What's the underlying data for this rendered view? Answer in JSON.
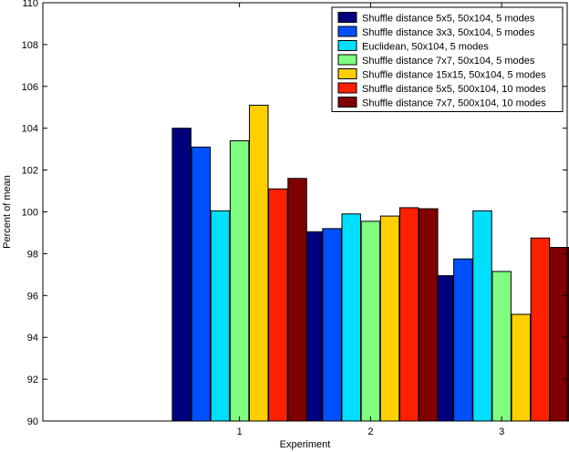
{
  "chart_data": {
    "type": "bar",
    "title": "",
    "xlabel": "Experiment",
    "ylabel": "Percent of mean",
    "categories": [
      "1",
      "2",
      "3"
    ],
    "ylim": [
      90,
      110
    ],
    "yticks": [
      90,
      92,
      94,
      96,
      98,
      100,
      102,
      104,
      106,
      108,
      110
    ],
    "grid": false,
    "legend_position": "top-right",
    "series": [
      {
        "name": "Shuffle distance 5x5, 50x104, 5 modes",
        "color": "#00007f",
        "values": [
          104.0,
          99.05,
          96.95
        ]
      },
      {
        "name": "Shuffle distance 3x3, 50x104, 5 modes",
        "color": "#0050ff",
        "values": [
          103.1,
          99.2,
          97.75
        ]
      },
      {
        "name": "Euclidean, 50x104, 5 modes",
        "color": "#00dfff",
        "values": [
          100.05,
          99.9,
          100.05
        ]
      },
      {
        "name": "Shuffle distance 7x7, 50x104, 5 modes",
        "color": "#80ff80",
        "values": [
          103.4,
          99.55,
          97.15
        ]
      },
      {
        "name": "Shuffle distance 15x15, 50x104, 5 modes",
        "color": "#ffcf00",
        "values": [
          105.1,
          99.8,
          95.1
        ]
      },
      {
        "name": "Shuffle distance 5x5, 500x104, 10 modes",
        "color": "#ff2000",
        "values": [
          101.1,
          100.2,
          98.75
        ]
      },
      {
        "name": "Shuffle distance 7x7, 500x104, 10 modes",
        "color": "#800000",
        "values": [
          101.6,
          100.15,
          98.3
        ]
      }
    ]
  }
}
